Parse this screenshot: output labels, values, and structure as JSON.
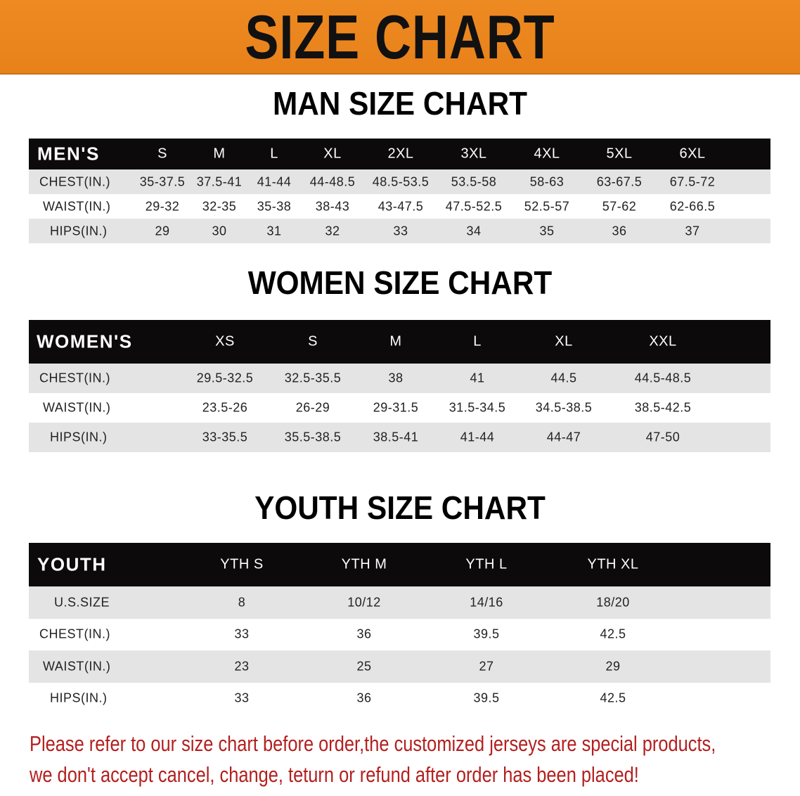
{
  "banner": {
    "title": "SIZE CHART",
    "color": "#e8811a"
  },
  "men": {
    "title": "MAN SIZE CHART",
    "header": [
      "MEN'S",
      "S",
      "M",
      "L",
      "XL",
      "2XL",
      "3XL",
      "4XL",
      "5XL",
      "6XL"
    ],
    "rows": [
      [
        "CHEST(IN.)",
        "35-37.5",
        "37.5-41",
        "41-44",
        "44-48.5",
        "48.5-53.5",
        "53.5-58",
        "58-63",
        "63-67.5",
        "67.5-72"
      ],
      [
        "WAIST(IN.)",
        "29-32",
        "32-35",
        "35-38",
        "38-43",
        "43-47.5",
        "47.5-52.5",
        "52.5-57",
        "57-62",
        "62-66.5"
      ],
      [
        "HIPS(IN.)",
        "29",
        "30",
        "31",
        "32",
        "33",
        "34",
        "35",
        "36",
        "37"
      ]
    ]
  },
  "women": {
    "title": "WOMEN SIZE CHART",
    "header": [
      "WOMEN'S",
      "XS",
      "S",
      "M",
      "L",
      "XL",
      "XXL"
    ],
    "rows": [
      [
        "CHEST(IN.)",
        "29.5-32.5",
        "32.5-35.5",
        "38",
        "41",
        "44.5",
        "44.5-48.5"
      ],
      [
        "WAIST(IN.)",
        "23.5-26",
        "26-29",
        "29-31.5",
        "31.5-34.5",
        "34.5-38.5",
        "38.5-42.5"
      ],
      [
        "HIPS(IN.)",
        "33-35.5",
        "35.5-38.5",
        "38.5-41",
        "41-44",
        "44-47",
        "47-50"
      ]
    ]
  },
  "youth": {
    "title": "YOUTH SIZE CHART",
    "header": [
      "YOUTH",
      "YTH S",
      "YTH M",
      "YTH L",
      "YTH XL"
    ],
    "rows": [
      [
        "U.S.SIZE",
        "8",
        "10/12",
        "14/16",
        "18/20"
      ],
      [
        "CHEST(IN.)",
        "33",
        "36",
        "39.5",
        "42.5"
      ],
      [
        "WAIST(IN.)",
        "23",
        "25",
        "27",
        "29"
      ],
      [
        "HIPS(IN.)",
        "33",
        "36",
        "39.5",
        "42.5"
      ]
    ]
  },
  "footer": {
    "line1": "Please refer to our size chart before order,the customized jerseys are special products,",
    "line2": "we don't accept cancel, change, teturn or refund after order has been placed!",
    "color": "#b3201f"
  }
}
